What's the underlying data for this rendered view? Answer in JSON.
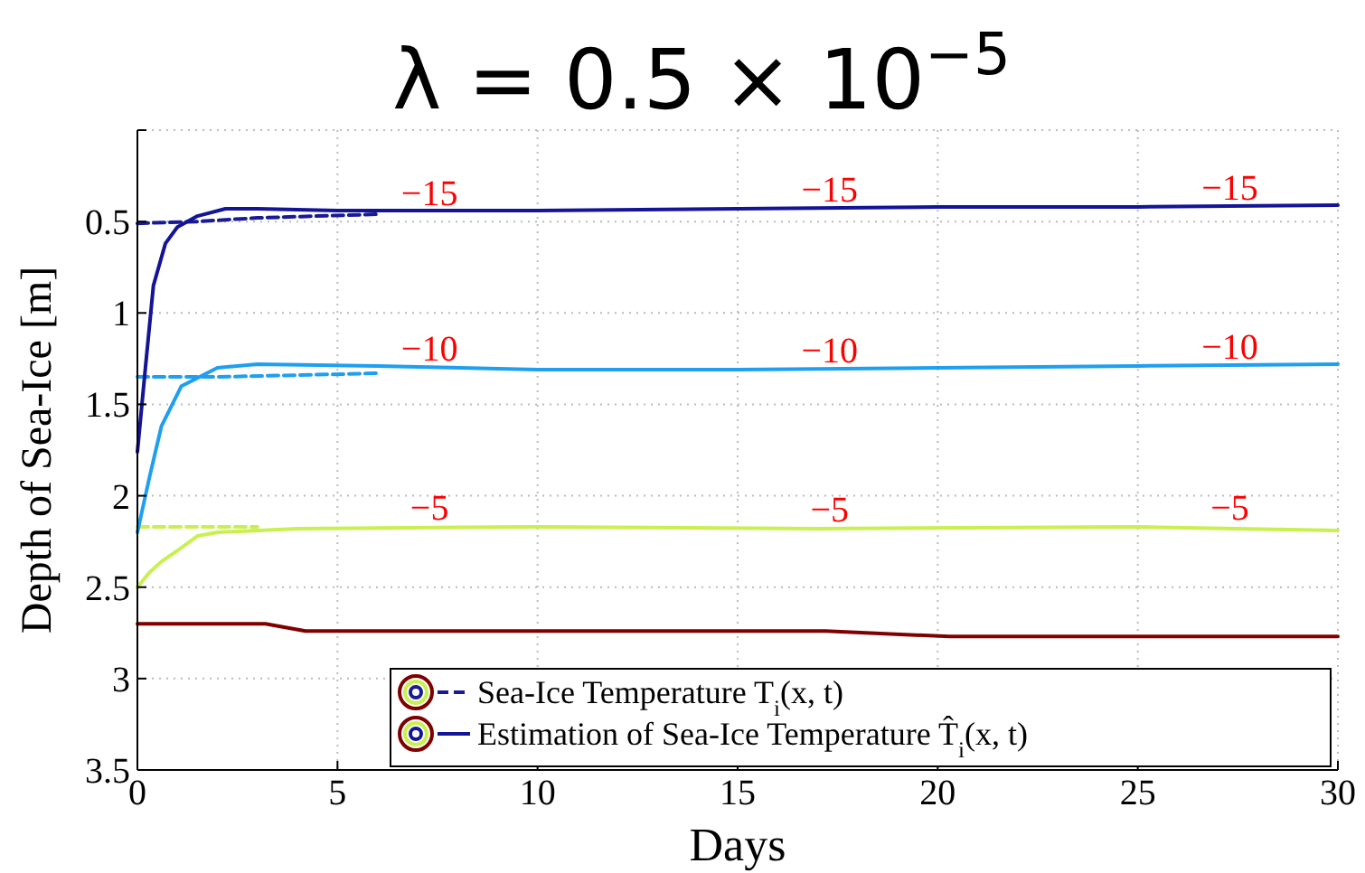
{
  "chart_data": {
    "type": "line",
    "title": "λ = 0.5 × 10$^{−5}$",
    "xlabel": "Days",
    "ylabel": "Depth of Sea-Ice [m]",
    "xlim": [
      0,
      30
    ],
    "xticks": [
      0,
      5,
      10,
      15,
      20,
      25,
      30
    ],
    "ylim": [
      3.5,
      0
    ],
    "yticks": [
      {
        "value": 0,
        "label": null
      },
      0.5,
      1,
      1.5,
      2,
      2.5,
      3,
      3.5
    ],
    "grid": true,
    "legend": "bottom right",
    "marker": "none",
    "series": [
      {
        "name": "Sea-Ice Temperature T$_{i}$(x, t)",
        "color": "#1a1a96",
        "line_style": "dashed",
        "x": [
          0,
          1.5,
          3,
          6
        ],
        "values": [
          0.51,
          0.5,
          0.48,
          0.46
        ]
      },
      {
        "color": "#1e9ff0",
        "line_style": "dashed",
        "x": [
          0,
          2,
          4,
          6
        ],
        "values": [
          1.35,
          1.35,
          1.34,
          1.33
        ]
      },
      {
        "color": "#c8f050",
        "line_style": "dashed",
        "x": [
          0,
          1.5,
          3
        ],
        "values": [
          2.17,
          2.17,
          2.17
        ]
      },
      {
        "name": "Estimation of Sea-Ice Temperature T̂$_{i}$(x, t)",
        "color": "#141496",
        "line_style": "solid",
        "x": [
          0,
          0.2,
          0.4,
          0.7,
          1,
          1.5,
          2.2,
          3,
          5,
          10,
          15,
          20,
          25,
          30
        ],
        "values": [
          1.76,
          1.3,
          0.85,
          0.62,
          0.53,
          0.47,
          0.43,
          0.43,
          0.44,
          0.44,
          0.43,
          0.42,
          0.42,
          0.41
        ]
      },
      {
        "color": "#1e9ff0",
        "line_style": "solid",
        "x": [
          0,
          0.3,
          0.6,
          1.1,
          2,
          3,
          6,
          10,
          15,
          20,
          25,
          30
        ],
        "values": [
          2.2,
          1.9,
          1.62,
          1.4,
          1.3,
          1.28,
          1.29,
          1.31,
          1.31,
          1.3,
          1.29,
          1.28
        ]
      },
      {
        "color": "#c8f050",
        "line_style": "solid",
        "x": [
          0,
          0.3,
          0.6,
          1,
          1.5,
          2,
          4,
          10,
          17,
          25,
          30
        ],
        "values": [
          2.5,
          2.42,
          2.36,
          2.3,
          2.22,
          2.2,
          2.18,
          2.17,
          2.18,
          2.17,
          2.19
        ]
      },
      {
        "color": "#800000",
        "line_style": "solid",
        "x": [
          0,
          3.2,
          4.2,
          17.2,
          20.3,
          30
        ],
        "values": [
          2.7,
          2.7,
          2.74,
          2.74,
          2.77,
          2.77
        ]
      }
    ],
    "annotations": [
      {
        "text": "−15",
        "x": 7.3,
        "y": 0.45
      },
      {
        "text": "−15",
        "x": 17.3,
        "y": 0.43
      },
      {
        "text": "−15",
        "x": 27.3,
        "y": 0.42
      },
      {
        "text": "−10",
        "x": 7.3,
        "y": 1.3
      },
      {
        "text": "−10",
        "x": 17.3,
        "y": 1.31
      },
      {
        "text": "−10",
        "x": 27.3,
        "y": 1.29
      },
      {
        "text": "−5",
        "x": 7.3,
        "y": 2.17
      },
      {
        "text": "−5",
        "x": 17.3,
        "y": 2.18
      },
      {
        "text": "−5",
        "x": 27.3,
        "y": 2.17
      }
    ]
  }
}
